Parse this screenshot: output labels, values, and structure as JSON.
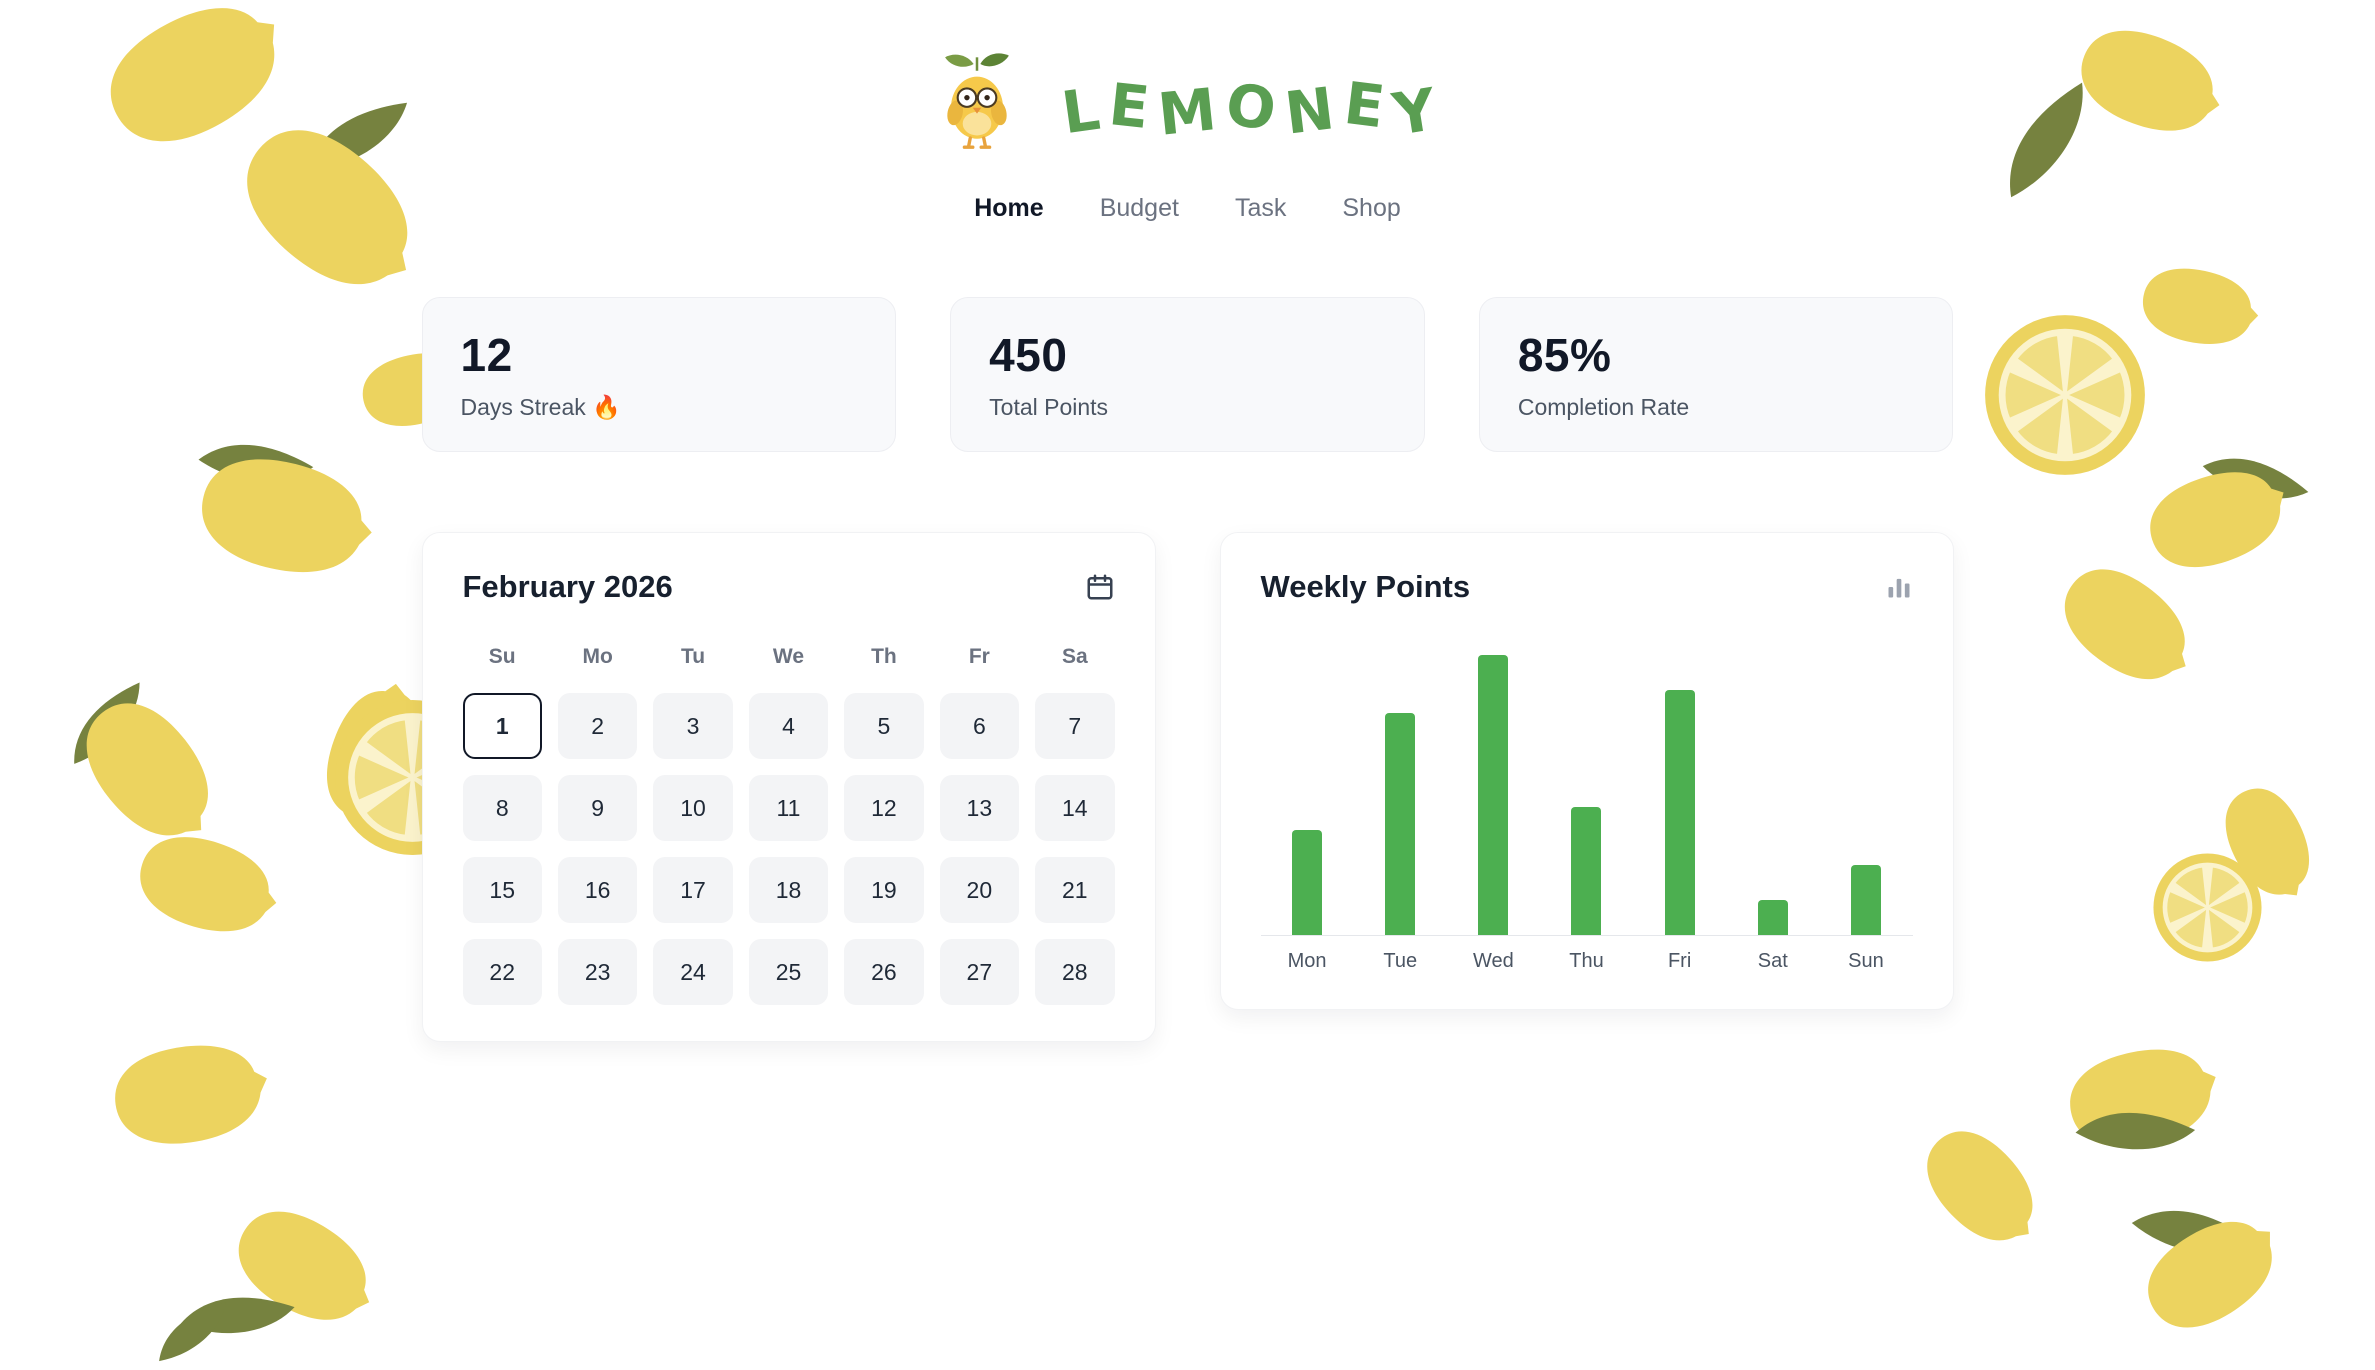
{
  "brand": {
    "name": "LEMONEY",
    "letters": [
      "L",
      "E",
      "M",
      "O",
      "N",
      "E",
      "Y"
    ],
    "accent_color": "#5a9e52",
    "mascot": "lemoney-chick-mascot"
  },
  "nav": {
    "items": [
      {
        "label": "Home",
        "active": true
      },
      {
        "label": "Budget",
        "active": false
      },
      {
        "label": "Task",
        "active": false
      },
      {
        "label": "Shop",
        "active": false
      }
    ]
  },
  "stats": [
    {
      "value": "12",
      "label": "Days Streak 🔥"
    },
    {
      "value": "450",
      "label": "Total Points"
    },
    {
      "value": "85%",
      "label": "Completion Rate"
    }
  ],
  "calendar": {
    "title": "February 2026",
    "weekdays": [
      "Su",
      "Mo",
      "Tu",
      "We",
      "Th",
      "Fr",
      "Sa"
    ],
    "days": [
      1,
      2,
      3,
      4,
      5,
      6,
      7,
      8,
      9,
      10,
      11,
      12,
      13,
      14,
      15,
      16,
      17,
      18,
      19,
      20,
      21,
      22,
      23,
      24,
      25,
      26,
      27,
      28
    ],
    "selected_day": 1,
    "icon": "calendar-icon"
  },
  "chart_data": {
    "type": "bar",
    "title": "Weekly Points",
    "categories": [
      "Mon",
      "Tue",
      "Wed",
      "Thu",
      "Fri",
      "Sat",
      "Sun"
    ],
    "values": [
      45,
      95,
      120,
      55,
      105,
      15,
      30
    ],
    "xlabel": "",
    "ylabel": "",
    "ylim": [
      0,
      125
    ],
    "grid": false,
    "legend": "none",
    "bar_color": "#4caf50",
    "icon": "bar-chart-icon"
  },
  "colors": {
    "lemon_yellow": "#ecd35f",
    "leaf_green": "#76823f",
    "bar_green": "#4caf50"
  }
}
